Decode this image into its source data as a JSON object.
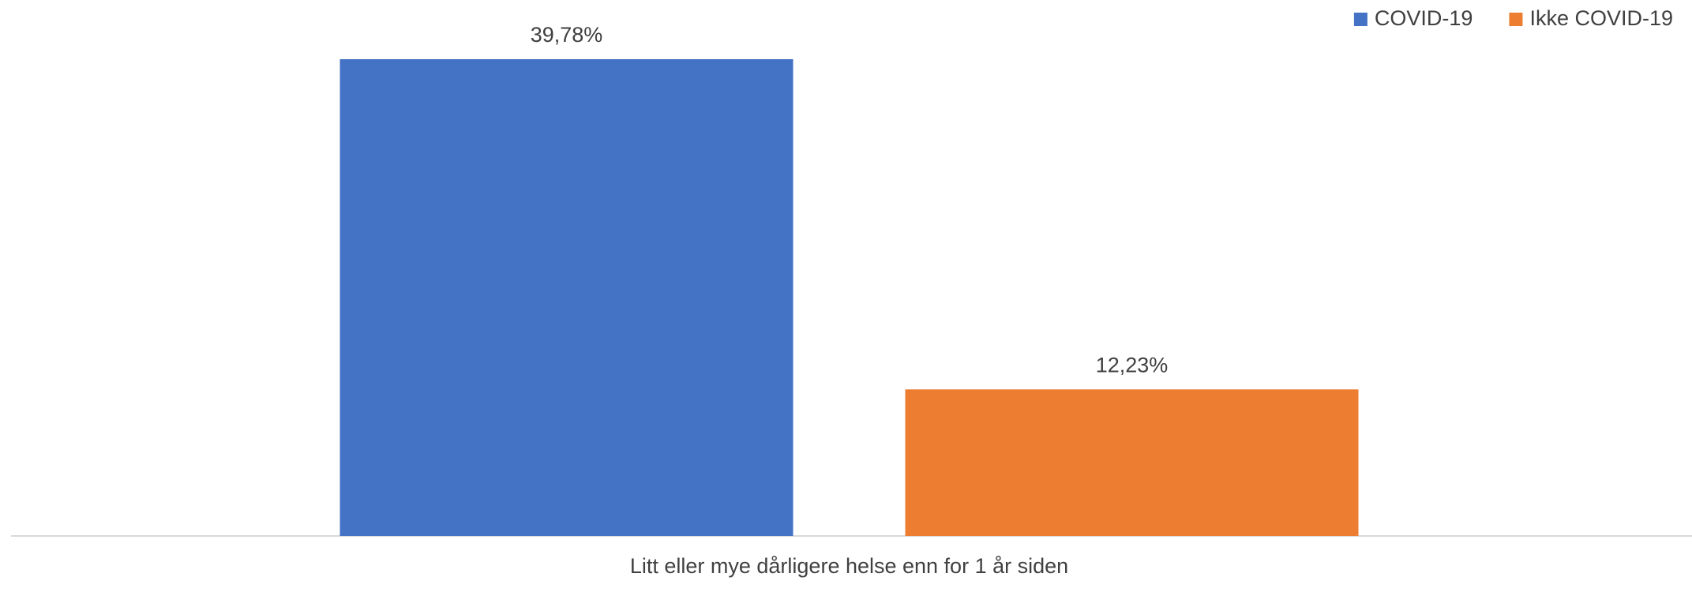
{
  "chart_data": {
    "type": "bar",
    "categories": [
      "Litt eller mye dårligere helse enn for 1 år siden"
    ],
    "series": [
      {
        "name": "COVID-19",
        "color": "#4472c4",
        "values": [
          39.78
        ],
        "value_labels": [
          "39,78%"
        ]
      },
      {
        "name": "Ikke COVID-19",
        "color": "#ed7d31",
        "values": [
          12.23
        ],
        "value_labels": [
          "12,23%"
        ]
      }
    ],
    "legend": "upper right"
  }
}
